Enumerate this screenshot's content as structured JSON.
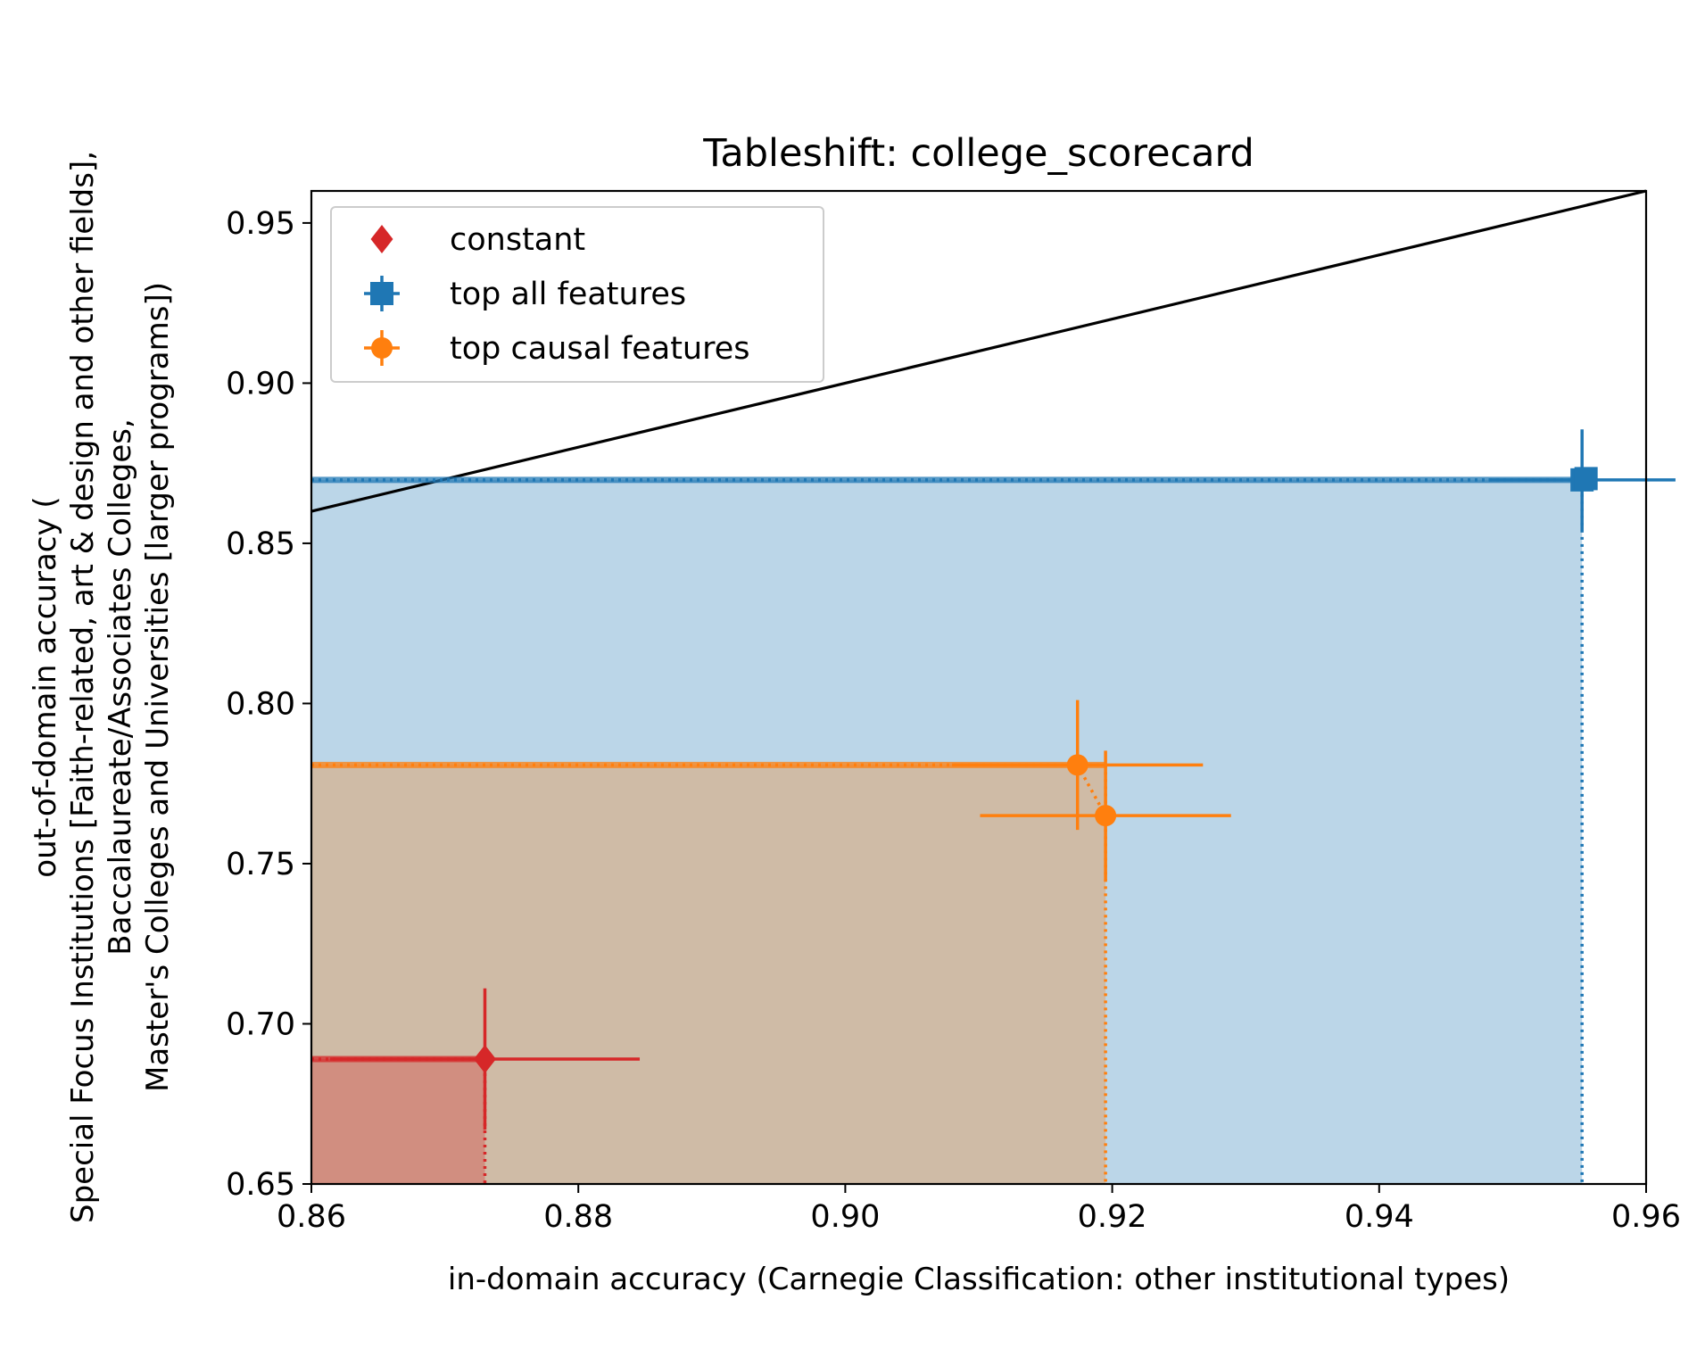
{
  "chart_data": {
    "type": "scatter",
    "title": "Tableshift: college_scorecard",
    "xlabel": "in-domain accuracy (Carnegie Classification: other institutional types)",
    "ylabel_lines": [
      "out-of-domain accuracy (",
      "Special Focus Institutions [Faith-related, art & design and other fields],",
      "Baccalaureate/Associates Colleges,",
      "Master's Colleges and Universities [larger programs])"
    ],
    "xlim": [
      0.86,
      0.96
    ],
    "ylim": [
      0.65,
      0.96
    ],
    "xticks": [
      "0.86",
      "0.88",
      "0.90",
      "0.92",
      "0.94",
      "0.96"
    ],
    "yticks": [
      "0.65",
      "0.70",
      "0.75",
      "0.80",
      "0.85",
      "0.90",
      "0.95"
    ],
    "legend_position": "top-left",
    "diagonal": true,
    "series": [
      {
        "name": "constant",
        "color": "#d62728",
        "marker": "diamond",
        "points": [
          {
            "x": 0.873,
            "y": 0.689,
            "xerr": 0.0058,
            "yerr": 0.0245
          }
        ],
        "frontier": {
          "x": 0.873,
          "y": 0.689
        }
      },
      {
        "name": "top all features",
        "color": "#1f77b4",
        "marker": "square",
        "points": [
          {
            "x": 0.9552,
            "y": 0.8698,
            "xerr": 0.0035,
            "yerr": 0.0175
          },
          {
            "x": 0.9555,
            "y": 0.8702,
            "xerr": 0.0,
            "yerr": 0.0
          }
        ],
        "frontier": {
          "x": 0.9552,
          "y": 0.8698
        }
      },
      {
        "name": "top causal features",
        "color": "#ff7f0e",
        "marker": "circle",
        "points": [
          {
            "x": 0.9174,
            "y": 0.7808,
            "xerr": 0.0047,
            "yerr": 0.0225
          },
          {
            "x": 0.9195,
            "y": 0.765,
            "xerr": 0.0047,
            "yerr": 0.0225
          }
        ],
        "frontier": {
          "x": 0.9195,
          "y": 0.7808
        }
      }
    ]
  }
}
